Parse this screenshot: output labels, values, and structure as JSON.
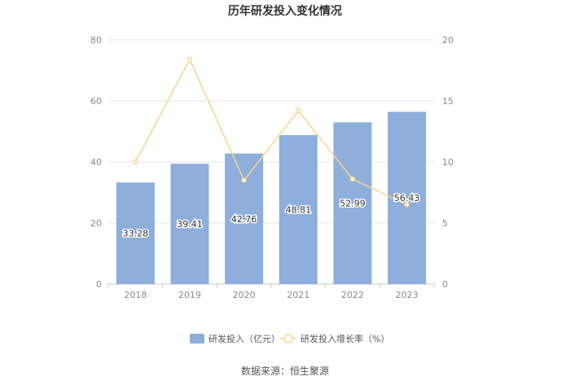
{
  "chart_data": {
    "type": "bar",
    "title": "历年研发投入变化情况",
    "categories": [
      "2018",
      "2019",
      "2020",
      "2021",
      "2022",
      "2023"
    ],
    "series": [
      {
        "name": "研发投入（亿元）",
        "type": "bar",
        "axis": "left",
        "values": [
          33.28,
          39.41,
          42.76,
          48.81,
          52.99,
          56.43
        ],
        "color": "#8eaedc"
      },
      {
        "name": "研发投入增长率（%）",
        "type": "line",
        "axis": "right",
        "values": [
          10.0,
          18.4,
          8.5,
          14.2,
          8.6,
          6.5
        ],
        "color": "#fcd38f"
      }
    ],
    "y_left": {
      "range": [
        0,
        80
      ],
      "ticks": [
        "0",
        "20",
        "40",
        "60",
        "80"
      ]
    },
    "y_right": {
      "range": [
        0,
        20
      ],
      "ticks": [
        "0",
        "5",
        "10",
        "15",
        "20"
      ]
    },
    "grid": true,
    "legend_position": "bottom",
    "source": "数据来源：恒生聚源"
  }
}
